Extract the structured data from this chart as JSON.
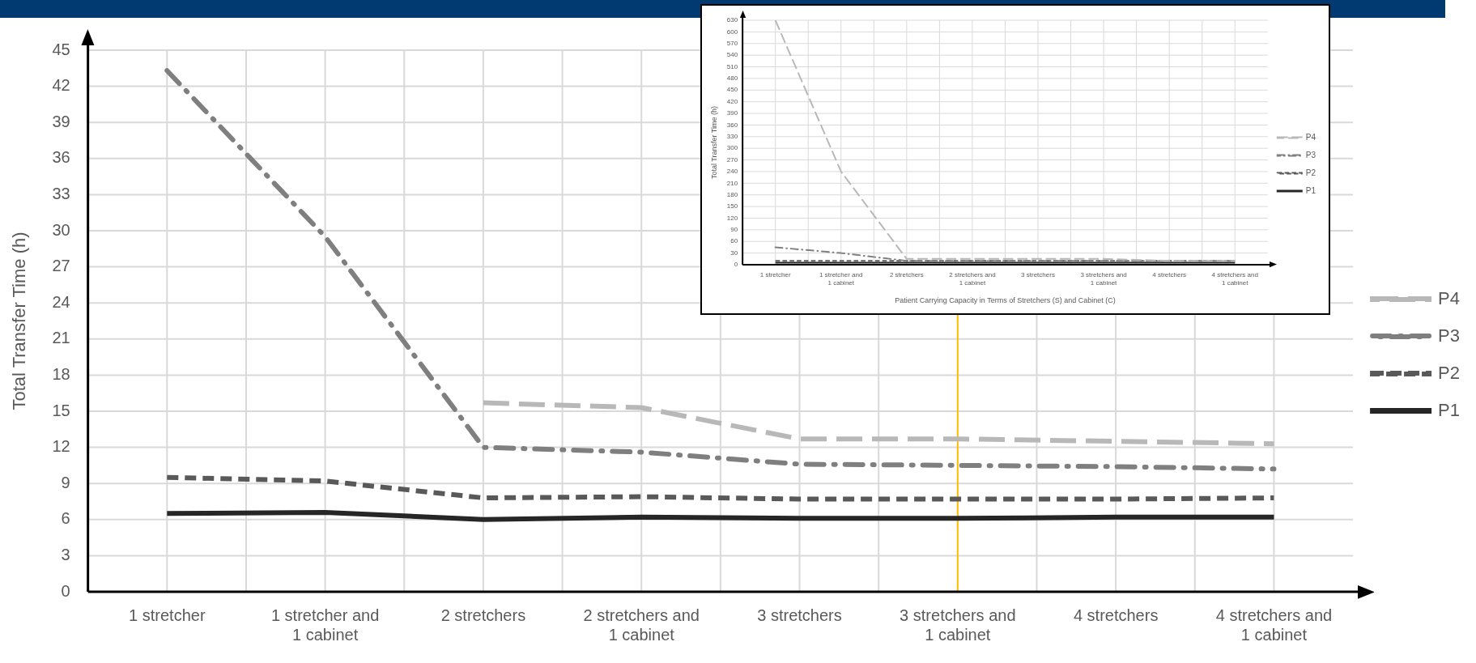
{
  "chart_data": [
    {
      "type": "line",
      "ylabel": "Total Transfer Time (h)",
      "categories": [
        "1 stretcher",
        "1 stretcher and 1 cabinet",
        "2 stretchers",
        "2 stretchers and 1 cabinet",
        "3 stretchers",
        "3 stretchers and 1 cabinet",
        "4 stretchers",
        "4 stretchers and 1 cabinet"
      ],
      "series": [
        {
          "name": "P4",
          "color": "#b8b8b8",
          "line_style": "longdash",
          "values": [
            null,
            null,
            15.7,
            15.3,
            12.7,
            12.7,
            12.5,
            12.3
          ]
        },
        {
          "name": "P3",
          "color": "#7f7f7f",
          "line_style": "dashdot",
          "values": [
            43.3,
            29.5,
            12.0,
            11.6,
            10.6,
            10.5,
            10.4,
            10.2
          ]
        },
        {
          "name": "P2",
          "color": "#595959",
          "line_style": "dashed",
          "values": [
            9.5,
            9.2,
            7.8,
            7.9,
            7.7,
            7.7,
            7.7,
            7.8
          ]
        },
        {
          "name": "P1",
          "color": "#262626",
          "line_style": "solid",
          "values": [
            6.5,
            6.6,
            6.0,
            6.2,
            6.1,
            6.1,
            6.2,
            6.2
          ]
        }
      ],
      "ylim": [
        0,
        45
      ],
      "yticks": [
        0,
        3,
        6,
        9,
        12,
        15,
        18,
        21,
        24,
        27,
        30,
        33,
        36,
        39,
        42,
        45
      ],
      "grid": true,
      "legend": "right",
      "ref_lines": [
        {
          "axis": "x",
          "value": "3 stretchers and 1 cabinet",
          "color": "#ffc000"
        }
      ]
    },
    {
      "type": "line",
      "ylabel": "Total Transfer Time (h)",
      "xlabel": "Patient Carrying Capacity in Terms of Stretchers (S) and Cabinet (C)",
      "categories": [
        "1 stretcher",
        "1 stretcher and 1 cabinet",
        "2 stretchers",
        "2 stretchers and 1 cabinet",
        "3 stretchers",
        "3 stretchers and 1 cabinet",
        "4 stretchers",
        "4 stretchers and 1 cabinet"
      ],
      "series": [
        {
          "name": "P4",
          "color": "#b8b8b8",
          "line_style": "longdash",
          "values": [
            630,
            240,
            15,
            15,
            15,
            15,
            10,
            10
          ]
        },
        {
          "name": "P3",
          "color": "#7f7f7f",
          "line_style": "dashdot",
          "values": [
            45,
            30,
            10,
            10,
            10,
            10,
            10,
            10
          ]
        },
        {
          "name": "P2",
          "color": "#595959",
          "line_style": "dashed",
          "values": [
            10,
            10,
            10,
            10,
            10,
            10,
            10,
            10
          ]
        },
        {
          "name": "P1",
          "color": "#262626",
          "line_style": "solid",
          "values": [
            5,
            5,
            5,
            5,
            5,
            5,
            5,
            5
          ]
        }
      ],
      "ylim": [
        0,
        630
      ],
      "yticks": [
        0,
        30,
        60,
        90,
        120,
        150,
        180,
        210,
        240,
        270,
        300,
        330,
        360,
        390,
        420,
        450,
        480,
        510,
        540,
        570,
        600,
        630
      ],
      "grid": true,
      "legend": "right"
    }
  ]
}
